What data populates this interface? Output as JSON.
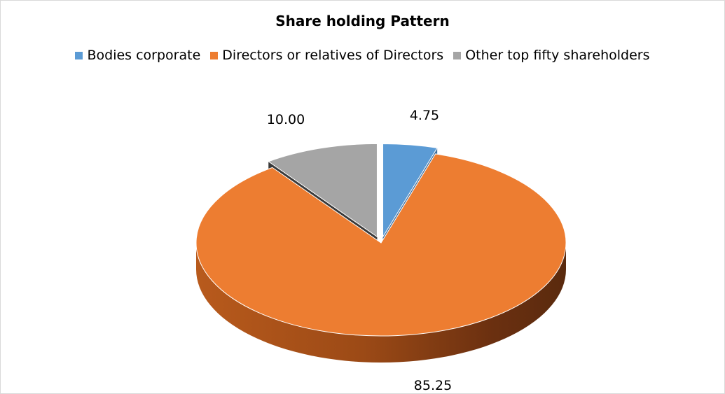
{
  "chart_data": {
    "type": "pie",
    "title": "Share holding Pattern",
    "three_d": true,
    "legend_position": "top",
    "series": [
      {
        "categories": [
          "Bodies corporate",
          "Directors or relatives of Directors",
          "Other top fifty shareholders"
        ],
        "values": [
          4.75,
          85.25,
          10.0
        ],
        "labels": [
          "4.75",
          "85.25",
          "10.00"
        ]
      }
    ],
    "colors": [
      "#5B9BD5",
      "#ED7D31",
      "#A5A5A5"
    ]
  }
}
